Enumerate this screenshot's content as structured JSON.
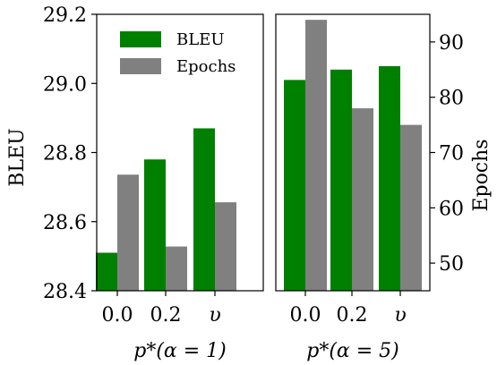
{
  "chart_data": [
    {
      "type": "bar",
      "categories": [
        "0.0",
        "0.2",
        "υ"
      ],
      "xlabel": "p*(α = 1)",
      "ylabel": "BLEU",
      "ylim": [
        28.4,
        29.2
      ],
      "yticks": [
        "28.4",
        "28.6",
        "28.8",
        "29.0",
        "29.2"
      ],
      "y2lim": [
        45,
        95
      ],
      "series": [
        {
          "name": "BLEU",
          "axis": "left",
          "color": "#008000",
          "values": [
            28.51,
            28.78,
            28.87
          ]
        },
        {
          "name": "Epochs",
          "axis": "right",
          "color": "#808080",
          "values": [
            66,
            53,
            61
          ]
        }
      ],
      "legend": "top-left"
    },
    {
      "type": "bar",
      "categories": [
        "0.0",
        "0.2",
        "υ"
      ],
      "xlabel": "p*(α = 5)",
      "y2label": "Epochs",
      "ylim": [
        28.4,
        29.2
      ],
      "y2lim": [
        45,
        95
      ],
      "y2ticks": [
        "50",
        "60",
        "70",
        "80",
        "90"
      ],
      "series": [
        {
          "name": "BLEU",
          "axis": "left",
          "color": "#008000",
          "values": [
            29.01,
            29.04,
            29.05
          ]
        },
        {
          "name": "Epochs",
          "axis": "right",
          "color": "#808080",
          "values": [
            94,
            78,
            75
          ]
        }
      ]
    }
  ]
}
